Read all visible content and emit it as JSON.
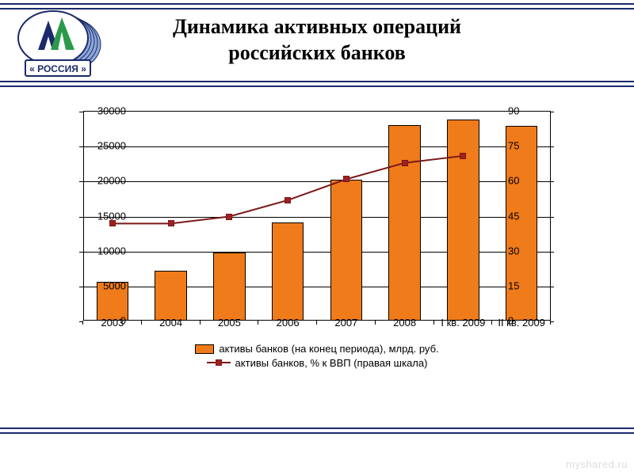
{
  "title_line1": "Динамика активных операций",
  "title_line2": "российских банков",
  "logo_text": "« РОССИЯ »",
  "rule_color": "#1a2a6b",
  "watermark": "myshared.ru",
  "chart": {
    "type": "bar+line",
    "categories": [
      "2003",
      "2004",
      "2005",
      "2006",
      "2007",
      "2008",
      "I кв. 2009",
      "II кв. 2009"
    ],
    "bars": {
      "values": [
        5600,
        7100,
        9750,
        14000,
        20100,
        28000,
        28800,
        27800
      ],
      "color": "#f07b1a",
      "border": "#000000",
      "width_frac": 0.55
    },
    "line": {
      "values": [
        42,
        42,
        45,
        52,
        61,
        68,
        71,
        null
      ],
      "color": "#7a1818",
      "marker_fill": "#a02020",
      "marker_size": 8,
      "line_width": 2
    },
    "y_left": {
      "min": 0,
      "max": 30000,
      "step": 5000
    },
    "y_right": {
      "min": 0,
      "max": 90,
      "step": 15
    },
    "grid_color": "#000000",
    "background": "#ffffff",
    "tick_fontsize": 13,
    "legend": {
      "bar_label": "активы банков (на конец периода), млрд. руб.",
      "line_label": "активы банков, % к ВВП (правая шкала)"
    }
  }
}
